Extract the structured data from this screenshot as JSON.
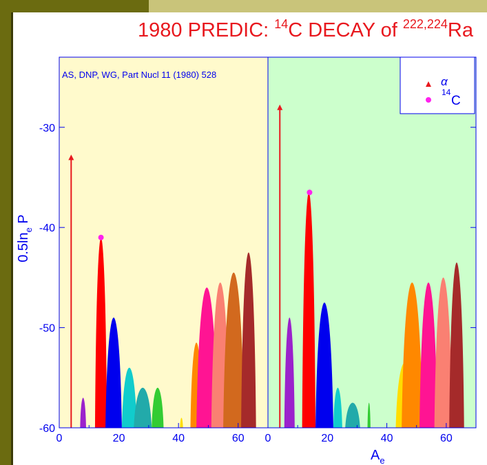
{
  "title": {
    "prefix": "1980 PREDIC: ",
    "sup1": "14",
    "mid": "C DECAY of ",
    "sup2": "222,224",
    "suffix": "Ra"
  },
  "reference": "AS, DNP, WG, Part Nucl 11 (1980) 528",
  "legend": {
    "alpha": "α",
    "c14_sup": "14",
    "c14_main": "C"
  },
  "colors": {
    "title": "#e8181e",
    "axis": "#0000ee",
    "alpha": "#e8181e",
    "c14": "#ff22ee",
    "left_bg": "#fffacc",
    "right_bg": "#ccffcc"
  },
  "chart_data": {
    "type": "area",
    "ylabel_main": "0.5ln",
    "ylabel_sub": "e",
    "ylabel_tail": " P",
    "xlabel_main": "A",
    "xlabel_sub": "e",
    "yticks": [
      "-30",
      "-40",
      "-50",
      "-60"
    ],
    "panels": [
      {
        "nucleus": "222Ra",
        "xlim": [
          0,
          70
        ],
        "ylim": [
          -60,
          -23
        ],
        "xticks": [
          "0",
          "20",
          "40",
          "60"
        ],
        "alpha": {
          "x": 4,
          "y": -33
        },
        "c14": {
          "x": 14,
          "y": -41
        },
        "peaks": [
          {
            "x0": 7,
            "x1": 9,
            "peak": -57,
            "color": "#9b22cc"
          },
          {
            "x0": 12,
            "x1": 16,
            "peak": -41,
            "color": "#ff0000"
          },
          {
            "x0": 15.5,
            "x1": 21,
            "peak": -49,
            "color": "#0000ee"
          },
          {
            "x0": 21,
            "x1": 26,
            "peak": -54,
            "color": "#11cccc"
          },
          {
            "x0": 25,
            "x1": 31,
            "peak": -56,
            "color": "#22aaaa"
          },
          {
            "x0": 31,
            "x1": 35,
            "peak": -56,
            "color": "#33cc33"
          },
          {
            "x0": 40.5,
            "x1": 41.5,
            "peak": -59,
            "color": "#ffdd00"
          },
          {
            "x0": 44,
            "x1": 48,
            "peak": -51.5,
            "color": "#ff8800"
          },
          {
            "x0": 46,
            "x1": 53,
            "peak": -46,
            "color": "#ff1493"
          },
          {
            "x0": 51,
            "x1": 57,
            "peak": -45.5,
            "color": "#fa8072"
          },
          {
            "x0": 55,
            "x1": 62,
            "peak": -44.5,
            "color": "#d2691e"
          },
          {
            "x0": 61,
            "x1": 66,
            "peak": -42.5,
            "color": "#a52a2a"
          }
        ]
      },
      {
        "nucleus": "224Ra",
        "xlim": [
          0,
          70
        ],
        "ylim": [
          -60,
          -23
        ],
        "xticks": [
          "0",
          "20",
          "40",
          "60"
        ],
        "alpha": {
          "x": 4,
          "y": -28
        },
        "c14": {
          "x": 14,
          "y": -36.5
        },
        "peaks": [
          {
            "x0": 5.5,
            "x1": 9,
            "peak": -49,
            "color": "#9b22cc"
          },
          {
            "x0": 11.5,
            "x1": 16,
            "peak": -36.5,
            "color": "#ff0000"
          },
          {
            "x0": 16,
            "x1": 22,
            "peak": -47.5,
            "color": "#0000ee"
          },
          {
            "x0": 22,
            "x1": 25,
            "peak": -56,
            "color": "#11cccc"
          },
          {
            "x0": 26,
            "x1": 31,
            "peak": -57.5,
            "color": "#22aaaa"
          },
          {
            "x0": 33.5,
            "x1": 34.5,
            "peak": -57.5,
            "color": "#33cc33"
          },
          {
            "x0": 43,
            "x1": 49,
            "peak": -53.5,
            "color": "#ffdd00"
          },
          {
            "x0": 45,
            "x1": 52,
            "peak": -45.5,
            "color": "#ff8800"
          },
          {
            "x0": 51,
            "x1": 57,
            "peak": -45.5,
            "color": "#ff1493"
          },
          {
            "x0": 56,
            "x1": 62,
            "peak": -45,
            "color": "#fa8072"
          },
          {
            "x0": 61,
            "x1": 66,
            "peak": -43.5,
            "color": "#a52a2a"
          }
        ]
      }
    ]
  }
}
